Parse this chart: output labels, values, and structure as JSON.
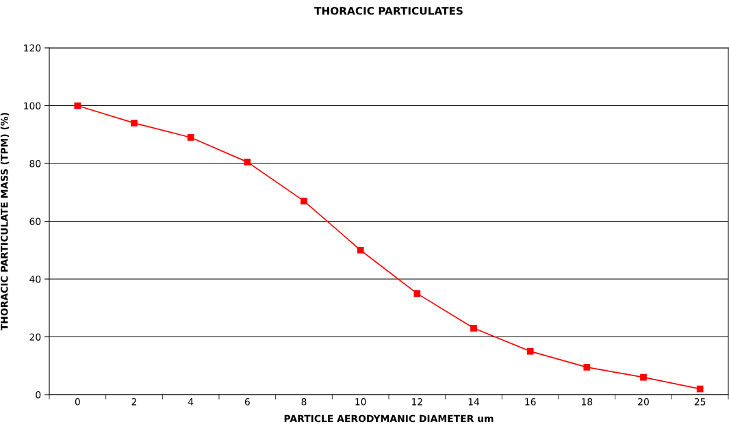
{
  "chart_data": {
    "type": "line",
    "title": "THORACIC PARTICULATES",
    "xlabel": "PARTICLE AERODYMANIC DIAMETER um",
    "ylabel": "THORACIC PARTICULATE MASS (TPM) (%)",
    "categories": [
      "0",
      "2",
      "4",
      "6",
      "8",
      "10",
      "12",
      "14",
      "16",
      "18",
      "20",
      "25"
    ],
    "series": [
      {
        "color": "#ff0000",
        "values": [
          100,
          94,
          89,
          80.5,
          67,
          50,
          35,
          23,
          15,
          9.5,
          6,
          2
        ]
      }
    ],
    "ylim": [
      0,
      120
    ],
    "yticks": [
      0,
      20,
      40,
      60,
      80,
      100,
      120
    ],
    "grid": "y",
    "marker": "square",
    "line_style": "solid",
    "legend": false
  }
}
